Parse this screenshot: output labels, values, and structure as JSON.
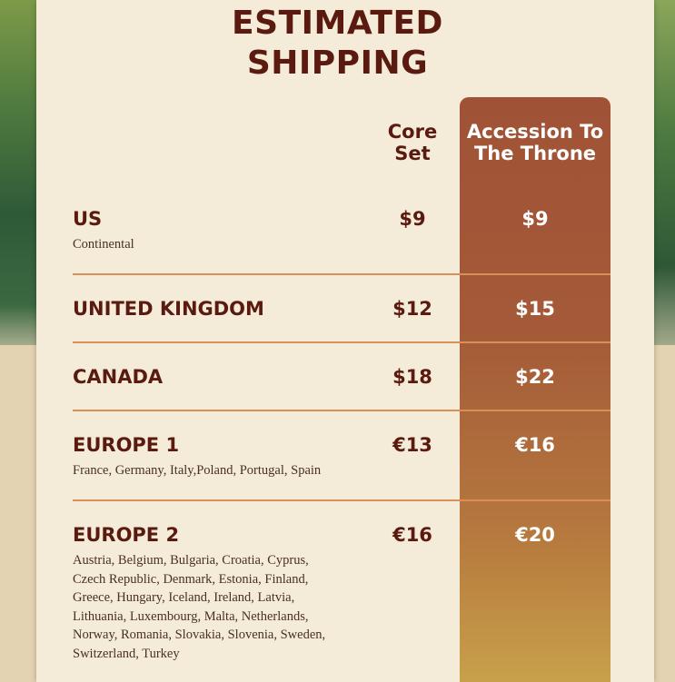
{
  "title": {
    "line1": "ESTIMATED",
    "line2": "SHIPPING"
  },
  "columns": {
    "core": {
      "line1": "Core",
      "line2": "Set"
    },
    "expansion": {
      "line1": "Accession To",
      "line2": "The Throne"
    }
  },
  "rows": [
    {
      "region": "US",
      "note": "Continental",
      "core": "$9",
      "expansion": "$9"
    },
    {
      "region": "UNITED KINGDOM",
      "core": "$12",
      "expansion": "$15"
    },
    {
      "region": "CANADA",
      "core": "$18",
      "expansion": "$22"
    },
    {
      "region": "EUROPE 1",
      "note": "France, Germany, Italy,Poland, Portugal, Spain",
      "core": "€13",
      "expansion": "€16"
    },
    {
      "region": "EUROPE 2",
      "note_lines": [
        "Austria, Belgium, Bulgaria, Croatia, Cyprus,",
        "Czech Republic, Denmark, Estonia, Finland,",
        "Greece, Hungary, Iceland, Ireland, Latvia,",
        "Lithuania, Luxembourg, Malta, Netherlands,",
        "Norway, Romania, Slovakia, Slovenia, Sweden,",
        "Switzerland, Turkey"
      ],
      "core": "€16",
      "expansion": "€20"
    }
  ],
  "colors": {
    "title": "#5a1a10",
    "accent_top": "#a05236",
    "accent_bottom": "#c8a04a",
    "divider": "#d99058",
    "paper": "#f4ecd9"
  }
}
